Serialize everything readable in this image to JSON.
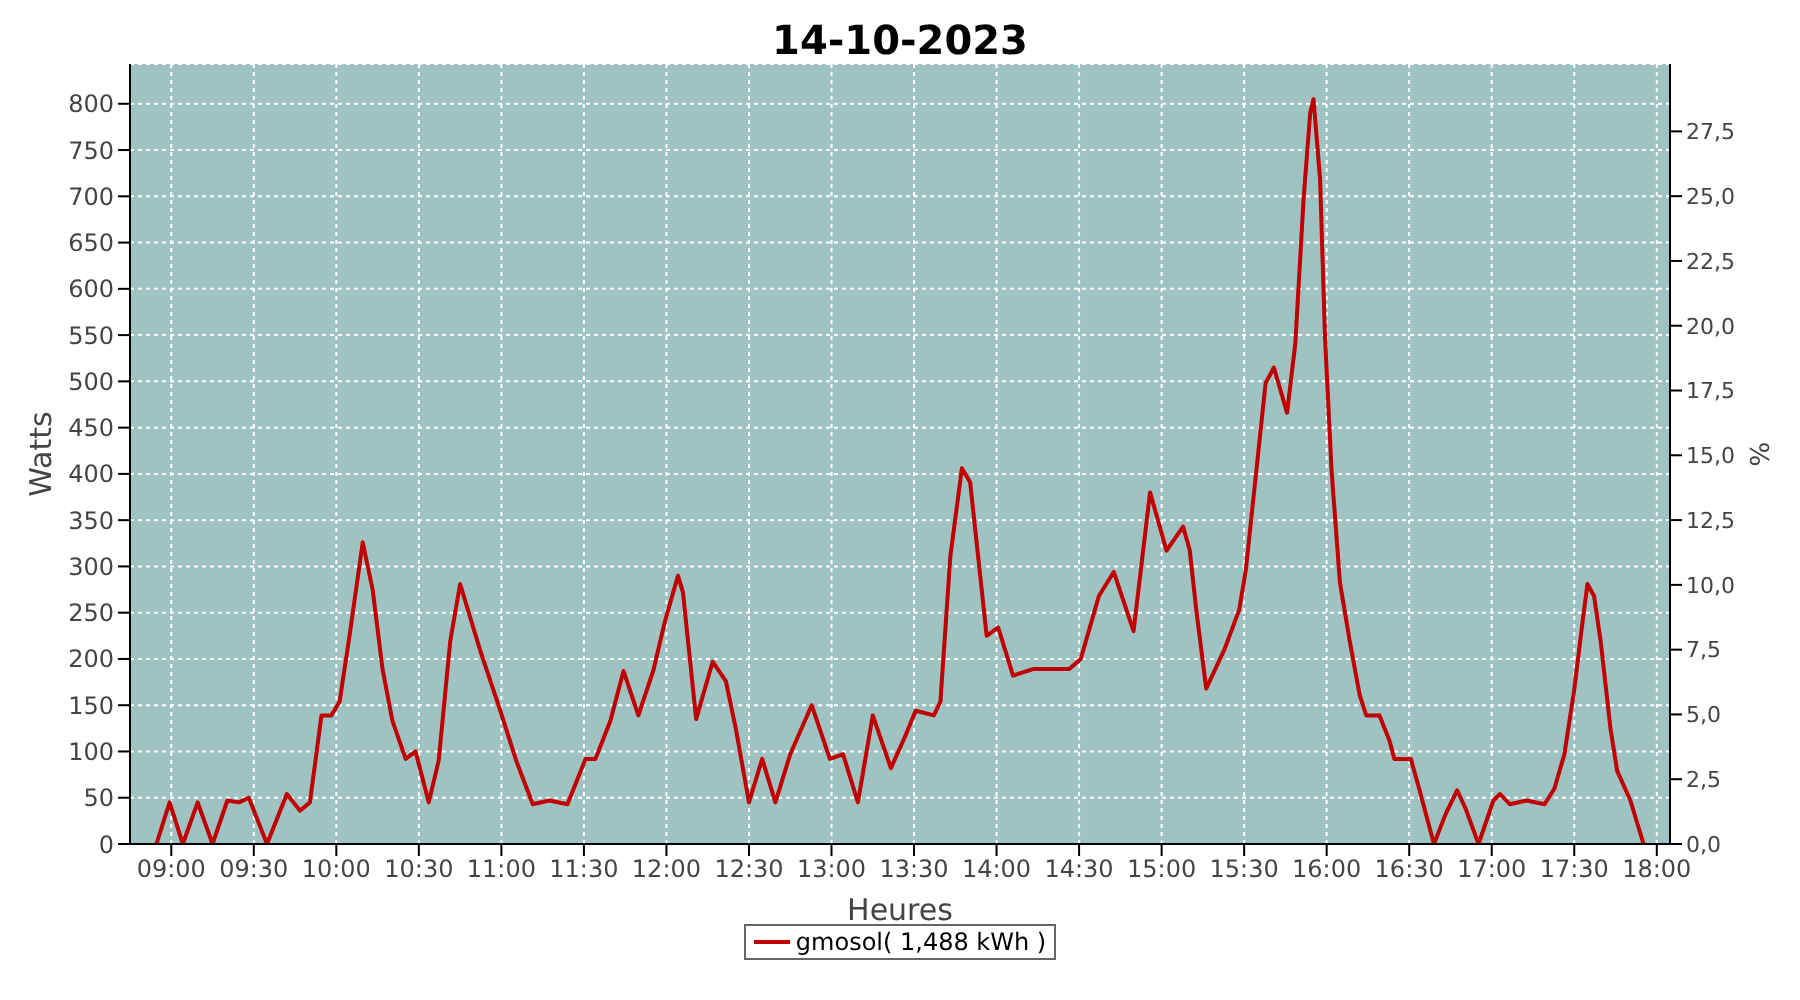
{
  "chart_data": {
    "type": "line",
    "title": "14-10-2023",
    "xlabel": "Heures",
    "ylabel": "Watts",
    "y2label": "%",
    "xlim": [
      8.75,
      18.08
    ],
    "xticks": [
      {
        "value": 9,
        "label": "09:00"
      },
      {
        "value": 9.5,
        "label": "09:30"
      },
      {
        "value": 10,
        "label": "10:00"
      },
      {
        "value": 10.5,
        "label": "10:30"
      },
      {
        "value": 11,
        "label": "11:00"
      },
      {
        "value": 11.5,
        "label": "11:30"
      },
      {
        "value": 12,
        "label": "12:00"
      },
      {
        "value": 12.5,
        "label": "12:30"
      },
      {
        "value": 13,
        "label": "13:00"
      },
      {
        "value": 13.5,
        "label": "13:30"
      },
      {
        "value": 14,
        "label": "14:00"
      },
      {
        "value": 14.5,
        "label": "14:30"
      },
      {
        "value": 15,
        "label": "15:00"
      },
      {
        "value": 15.5,
        "label": "15:30"
      },
      {
        "value": 16,
        "label": "16:00"
      },
      {
        "value": 16.5,
        "label": "16:30"
      },
      {
        "value": 17,
        "label": "17:00"
      },
      {
        "value": 17.5,
        "label": "17:30"
      },
      {
        "value": 18,
        "label": "18:00"
      }
    ],
    "ylim": [
      0,
      843
    ],
    "yticks": [
      0,
      50,
      100,
      150,
      200,
      250,
      300,
      350,
      400,
      450,
      500,
      550,
      600,
      650,
      700,
      750,
      800
    ],
    "y2lim": [
      0,
      30.1
    ],
    "y2ticks": [
      {
        "value": 0,
        "label": "0,0"
      },
      {
        "value": 2.5,
        "label": "2,5"
      },
      {
        "value": 5,
        "label": "5,0"
      },
      {
        "value": 7.5,
        "label": "7,5"
      },
      {
        "value": 10,
        "label": "10,0"
      },
      {
        "value": 12.5,
        "label": "12,5"
      },
      {
        "value": 15,
        "label": "15,0"
      },
      {
        "value": 17.5,
        "label": "17,5"
      },
      {
        "value": 20,
        "label": "20,0"
      },
      {
        "value": 22.5,
        "label": "22,5"
      },
      {
        "value": 25,
        "label": "25,0"
      },
      {
        "value": 27.5,
        "label": "27,5"
      }
    ],
    "grid": true,
    "legend": "bottom",
    "marker": "none",
    "line_style": "solid",
    "series": [
      {
        "name": "gmosol( 1,488 kWh )",
        "color": "#c00000",
        "x": [
          8.91,
          8.99,
          9.07,
          9.16,
          9.25,
          9.34,
          9.41,
          9.47,
          9.58,
          9.7,
          9.78,
          9.84,
          9.91,
          9.97,
          10.02,
          10.08,
          10.16,
          10.22,
          10.28,
          10.34,
          10.42,
          10.48,
          10.56,
          10.62,
          10.69,
          10.75,
          10.87,
          10.99,
          11.09,
          11.19,
          11.29,
          11.4,
          11.51,
          11.57,
          11.66,
          11.74,
          11.83,
          11.92,
          11.99,
          12.07,
          12.1,
          12.18,
          12.28,
          12.36,
          12.42,
          12.5,
          12.58,
          12.66,
          12.75,
          12.88,
          12.99,
          13.07,
          13.16,
          13.25,
          13.36,
          13.45,
          13.51,
          13.62,
          13.66,
          13.72,
          13.79,
          13.84,
          13.94,
          14.01,
          14.1,
          14.22,
          14.44,
          14.51,
          14.62,
          14.71,
          14.83,
          14.93,
          15.03,
          15.13,
          15.17,
          15.21,
          15.27,
          15.38,
          15.47,
          15.51,
          15.57,
          15.63,
          15.68,
          15.76,
          15.81,
          15.86,
          15.9,
          15.92,
          15.96,
          15.99,
          16.03,
          16.08,
          16.14,
          16.2,
          16.24,
          16.32,
          16.38,
          16.41,
          16.51,
          16.56,
          16.65,
          16.72,
          16.79,
          16.84,
          16.92,
          17.01,
          17.05,
          17.11,
          17.21,
          17.32,
          17.38,
          17.44,
          17.5,
          17.55,
          17.58,
          17.62,
          17.66,
          17.72,
          17.76,
          17.84,
          17.92
        ],
        "values": [
          0,
          45,
          0,
          45,
          0,
          47,
          45,
          50,
          0,
          54,
          36,
          45,
          139,
          139,
          154,
          225,
          326,
          275,
          189,
          133,
          92,
          100,
          45,
          90,
          219,
          281,
          210,
          146,
          90,
          43,
          47,
          43,
          92,
          92,
          133,
          187,
          139,
          187,
          240,
          290,
          272,
          135,
          197,
          176,
          125,
          45,
          92,
          45,
          97,
          150,
          92,
          97,
          45,
          139,
          82,
          118,
          144,
          139,
          154,
          311,
          406,
          391,
          225,
          234,
          182,
          189,
          189,
          200,
          268,
          294,
          230,
          380,
          317,
          343,
          318,
          253,
          168,
          210,
          253,
          296,
          397,
          498,
          515,
          466,
          541,
          697,
          790,
          805,
          719,
          547,
          403,
          283,
          219,
          161,
          139,
          139,
          112,
          92,
          92,
          60,
          0,
          32,
          58,
          39,
          0,
          47,
          54,
          43,
          47,
          43,
          60,
          97,
          167,
          240,
          281,
          268,
          219,
          124,
          79,
          47,
          0
        ]
      }
    ]
  }
}
